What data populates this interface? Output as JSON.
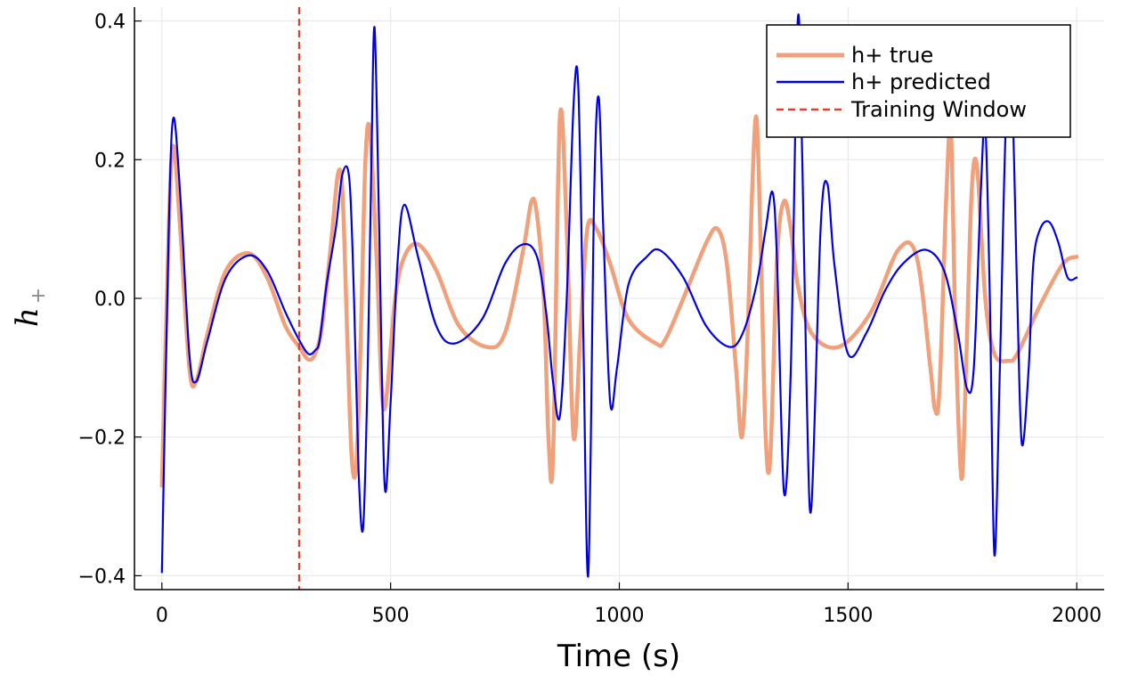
{
  "chart_data": {
    "type": "line",
    "title": "",
    "xlabel": "Time (s)",
    "ylabel_main": "h",
    "ylabel_sub": "+",
    "xlim": [
      -60,
      2060
    ],
    "ylim": [
      -0.42,
      0.42
    ],
    "xticks": [
      0,
      500,
      1000,
      1500,
      2000
    ],
    "xtick_labels": [
      "0",
      "500",
      "1000",
      "1500",
      "2000"
    ],
    "yticks": [
      -0.4,
      -0.2,
      0.0,
      0.2,
      0.4
    ],
    "ytick_labels": [
      "−0.4",
      "−0.2",
      "0.0",
      "0.2",
      "0.4"
    ],
    "grid": true,
    "legend_position": "top-right",
    "training_window": {
      "name": "Training Window",
      "x": 300,
      "color": "#e0402a"
    },
    "series": [
      {
        "name": "h+ true",
        "color": "#f0a07a",
        "x": [
          0,
          15,
          25,
          40,
          60,
          75,
          100,
          140,
          190,
          230,
          270,
          300,
          320,
          335,
          350,
          370,
          385,
          395,
          405,
          415,
          425,
          435,
          445,
          455,
          470,
          485,
          510,
          530,
          560,
          600,
          650,
          710,
          750,
          790,
          808,
          820,
          835,
          845,
          855,
          870,
          885,
          900,
          915,
          930,
          950,
          980,
          1020,
          1080,
          1100,
          1140,
          1190,
          1215,
          1235,
          1255,
          1268,
          1280,
          1290,
          1300,
          1310,
          1320,
          1330,
          1345,
          1360,
          1375,
          1390,
          1420,
          1480,
          1550,
          1610,
          1650,
          1680,
          1690,
          1700,
          1715,
          1725,
          1735,
          1748,
          1758,
          1770,
          1782,
          1800,
          1820,
          1850,
          1870,
          1920,
          1970,
          2000
        ],
        "values": [
          -0.27,
          0.1,
          0.22,
          0.1,
          -0.1,
          -0.12,
          -0.05,
          0.04,
          0.065,
          0.03,
          -0.04,
          -0.07,
          -0.088,
          -0.08,
          -0.04,
          0.08,
          0.18,
          0.15,
          -0.05,
          -0.23,
          -0.24,
          -0.05,
          0.2,
          0.24,
          0.05,
          -0.16,
          0.0,
          0.06,
          0.078,
          0.04,
          -0.04,
          -0.07,
          -0.05,
          0.07,
          0.14,
          0.12,
          0.0,
          -0.2,
          -0.23,
          0.26,
          0.1,
          -0.2,
          -0.05,
          0.1,
          0.1,
          0.05,
          -0.03,
          -0.065,
          -0.06,
          0.0,
          0.08,
          0.1,
          0.05,
          -0.1,
          -0.2,
          -0.06,
          0.15,
          0.26,
          0.05,
          -0.2,
          -0.23,
          0.06,
          0.14,
          0.1,
          0.02,
          -0.05,
          -0.07,
          -0.02,
          0.07,
          0.06,
          -0.1,
          -0.16,
          -0.13,
          0.15,
          0.24,
          -0.05,
          -0.26,
          -0.1,
          0.15,
          0.19,
          0.0,
          -0.08,
          -0.09,
          -0.08,
          -0.01,
          0.05,
          0.06
        ]
      },
      {
        "name": "h+ predicted",
        "color": "#0000e6",
        "x": [
          0,
          15,
          25,
          40,
          60,
          75,
          100,
          140,
          190,
          230,
          270,
          300,
          320,
          335,
          345,
          360,
          380,
          395,
          410,
          420,
          430,
          440,
          450,
          458,
          465,
          475,
          487,
          500,
          515,
          530,
          560,
          600,
          640,
          700,
          750,
          790,
          820,
          840,
          855,
          870,
          885,
          900,
          910,
          920,
          932,
          945,
          955,
          965,
          980,
          995,
          1020,
          1060,
          1090,
          1140,
          1190,
          1240,
          1270,
          1300,
          1320,
          1335,
          1345,
          1360,
          1375,
          1390,
          1400,
          1410,
          1420,
          1440,
          1455,
          1470,
          1500,
          1540,
          1580,
          1620,
          1670,
          1710,
          1740,
          1760,
          1775,
          1790,
          1800,
          1810,
          1820,
          1832,
          1845,
          1858,
          1870,
          1880,
          1895,
          1905,
          1920,
          1940,
          1960,
          1980,
          2000
        ],
        "values": [
          -0.395,
          0.1,
          0.26,
          0.15,
          -0.08,
          -0.12,
          -0.06,
          0.03,
          0.062,
          0.04,
          -0.02,
          -0.06,
          -0.08,
          -0.075,
          -0.06,
          0.02,
          0.1,
          0.18,
          0.17,
          0.0,
          -0.25,
          -0.33,
          -0.1,
          0.2,
          0.39,
          0.1,
          -0.27,
          -0.15,
          0.05,
          0.135,
          0.06,
          -0.04,
          -0.065,
          -0.03,
          0.05,
          0.078,
          0.06,
          -0.02,
          -0.12,
          -0.17,
          0.0,
          0.28,
          0.31,
          0.0,
          -0.4,
          0.15,
          0.29,
          0.1,
          -0.15,
          -0.1,
          0.02,
          0.06,
          0.069,
          0.03,
          -0.04,
          -0.07,
          -0.05,
          0.02,
          0.1,
          0.153,
          0.05,
          -0.28,
          -0.1,
          0.4,
          0.2,
          -0.15,
          -0.3,
          0.1,
          0.165,
          0.05,
          -0.08,
          -0.05,
          0.01,
          0.05,
          0.07,
          0.04,
          -0.05,
          -0.13,
          -0.1,
          0.15,
          0.25,
          0.0,
          -0.37,
          -0.1,
          0.25,
          0.3,
          0.0,
          -0.21,
          -0.1,
          0.05,
          0.1,
          0.11,
          0.08,
          0.03,
          0.03
        ]
      }
    ]
  }
}
